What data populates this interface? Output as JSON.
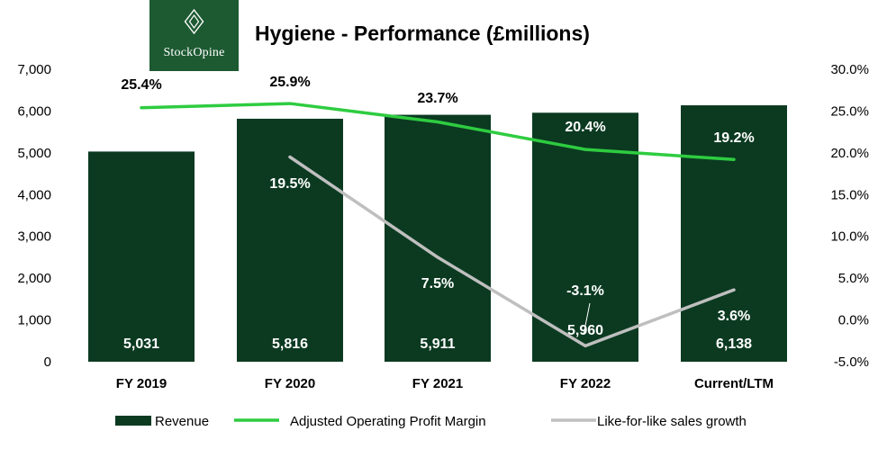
{
  "logo": {
    "text": "StockOpine"
  },
  "chart_data": {
    "type": "bar",
    "title": "Hygiene - Performance (£millions)",
    "categories": [
      "FY 2019",
      "FY 2020",
      "FY 2021",
      "FY 2022",
      "Current/LTM"
    ],
    "series": [
      {
        "name": "Revenue",
        "type": "bar",
        "axis": "left",
        "color": "#0b3a21",
        "values": [
          5031,
          5816,
          5911,
          5960,
          6138
        ],
        "labels": [
          "5,031",
          "5,816",
          "5,911",
          "5,960",
          "6,138"
        ]
      },
      {
        "name": "Adjusted  Operating Profit Margin",
        "type": "line",
        "axis": "right",
        "color": "#2ecc40",
        "values": [
          25.4,
          25.9,
          23.7,
          20.4,
          19.2
        ],
        "labels": [
          "25.4%",
          "25.9%",
          "23.7%",
          "20.4%",
          "19.2%"
        ]
      },
      {
        "name": "Like-for-like sales growth",
        "type": "line",
        "axis": "right",
        "color": "#bfbfbf",
        "values": [
          null,
          19.5,
          7.5,
          -3.1,
          3.6
        ],
        "labels": [
          "",
          "19.5%",
          "7.5%",
          "-3.1%",
          "3.6%"
        ]
      }
    ],
    "y_left": {
      "min": 0,
      "max": 7000,
      "ticks": [
        "0",
        "1,000",
        "2,000",
        "3,000",
        "4,000",
        "5,000",
        "6,000",
        "7,000"
      ]
    },
    "y_right": {
      "min": -5,
      "max": 30,
      "ticks": [
        "-5.0%",
        "0.0%",
        "5.0%",
        "10.0%",
        "15.0%",
        "20.0%",
        "25.0%",
        "30.0%"
      ]
    },
    "grid": false,
    "legend_position": "bottom"
  }
}
